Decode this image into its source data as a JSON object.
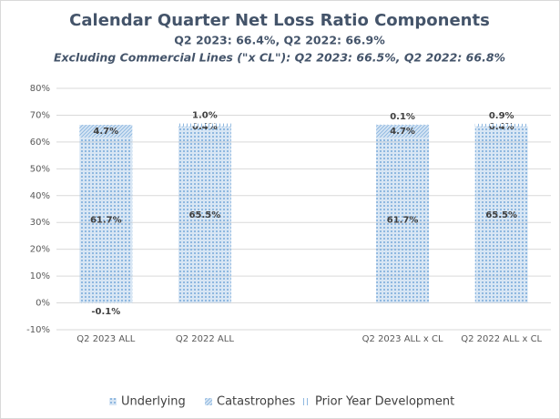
{
  "chart_data": {
    "type": "stacked-bar",
    "title": "Calendar Quarter Net Loss Ratio Components",
    "subtitle": "Q2 2023: 66.4%, Q2 2022: 66.9%",
    "subtitle2": "Excluding Commercial Lines (\"x CL\"): Q2 2023: 66.5%, Q2 2022: 66.8%",
    "categories": [
      "Q2 2023 ALL",
      "Q2 2022 ALL",
      null,
      "Q2 2023 ALL x CL",
      "Q2 2022 ALL x CL"
    ],
    "series": [
      {
        "name": "Underlying",
        "color": "#8fb8e0",
        "pattern": "dots",
        "values": [
          61.7,
          65.5,
          null,
          61.7,
          65.5
        ],
        "value_labels": [
          "61.7%",
          "65.5%",
          null,
          "61.7%",
          "65.5%"
        ]
      },
      {
        "name": "Catastrophes",
        "color": "#8fb8e0",
        "pattern": "diagonal",
        "values": [
          4.7,
          0.4,
          null,
          4.7,
          0.4
        ],
        "value_labels": [
          "4.7%",
          "0.4%",
          null,
          "4.7%",
          "0.4%"
        ]
      },
      {
        "name": "Prior Year Development",
        "color": "#8fb8e0",
        "pattern": "vertical",
        "values": [
          -0.1,
          1.0,
          null,
          0.1,
          0.9
        ],
        "value_labels": [
          "-0.1%",
          "1.0%",
          null,
          "0.1%",
          "0.9%"
        ]
      }
    ],
    "ylim": [
      -10,
      80
    ],
    "yticks": [
      {
        "value": -10,
        "label": "-10%"
      },
      {
        "value": 0,
        "label": "0%"
      },
      {
        "value": 10,
        "label": "10%"
      },
      {
        "value": 20,
        "label": "20%"
      },
      {
        "value": 30,
        "label": "30%"
      },
      {
        "value": 40,
        "label": "40%"
      },
      {
        "value": 50,
        "label": "50%"
      },
      {
        "value": 60,
        "label": "60%"
      },
      {
        "value": 70,
        "label": "70%"
      },
      {
        "value": 80,
        "label": "80%"
      }
    ],
    "grid": true,
    "legend": "bottom"
  }
}
